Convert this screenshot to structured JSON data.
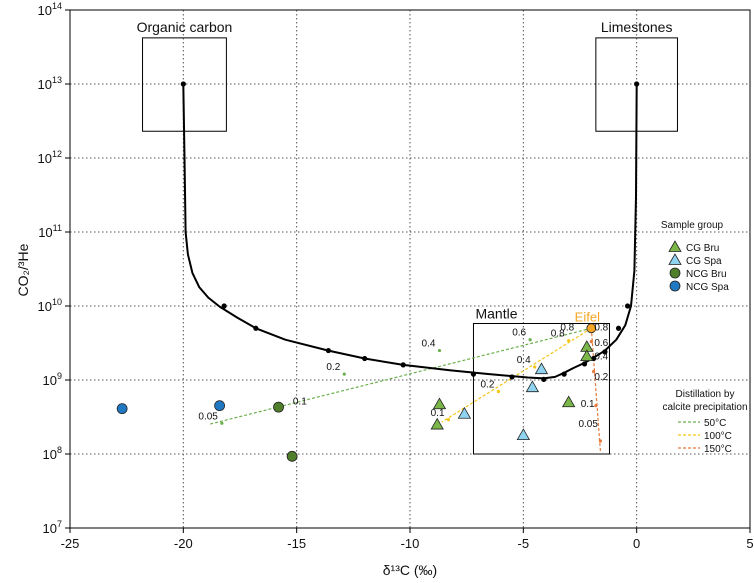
{
  "chart_data": {
    "type": "scatter",
    "xlabel": "δ¹³C (‰)",
    "ylabel": "CO₂/³He",
    "xlim": [
      -25,
      5
    ],
    "ylim_log10": [
      7,
      14
    ],
    "yscale": "log",
    "grid": true,
    "x_ticks": [
      "-25",
      "-20",
      "-15",
      "-10",
      "-5",
      "0",
      "5"
    ],
    "y_tick_exponents": [
      "7",
      "8",
      "9",
      "10",
      "11",
      "12",
      "13",
      "14"
    ],
    "legend_groups": {
      "sample_title": "Sample group",
      "distill_title_1": "Distillation by",
      "distill_title_2": "calcite precipitation"
    },
    "series": [
      {
        "name": "CG Bru",
        "marker": "triangle",
        "color": "#7ab648",
        "x": [
          -8.8,
          -8.7,
          -3.0,
          -2.2,
          -2.2
        ],
        "y": [
          250000000.0,
          470000000.0,
          500000000.0,
          2800000000.0,
          2100000000.0
        ]
      },
      {
        "name": "CG Spa",
        "marker": "triangle",
        "color": "#8fd3f0",
        "x": [
          -7.6,
          -5.0,
          -4.6,
          -4.2
        ],
        "y": [
          350000000.0,
          180000000.0,
          800000000.0,
          1400000000.0
        ]
      },
      {
        "name": "NCG Bru",
        "marker": "circle",
        "color": "#4f7f2a",
        "x": [
          -15.8,
          -15.2
        ],
        "y": [
          430000000.0,
          93000000.0
        ]
      },
      {
        "name": "NCG Spa",
        "marker": "circle",
        "color": "#1f78c1",
        "x": [
          -22.7,
          -18.4
        ],
        "y": [
          410000000.0,
          450000000.0
        ]
      }
    ],
    "eifel_point": {
      "label": "Eifel",
      "x": -2.0,
      "y": 5000000000.0,
      "color": "#f5a623"
    },
    "mixing_curve": {
      "x": [
        -20,
        -19.95,
        -19.9,
        -19.8,
        -19.6,
        -19.3,
        -18.9,
        -18.4,
        -17.6,
        -16.8,
        -15.5,
        -13.6,
        -12.0,
        -10.3,
        -8.2,
        -6.5,
        -4.8,
        -4.1,
        -3.6,
        -3.2,
        -2.8,
        -2.3,
        -1.9,
        -1.4,
        -0.9,
        -0.5,
        -0.25,
        -0.1,
        -0.03,
        0
      ],
      "y": [
        10000000000000.0,
        1000000000000.0,
        100000000000.0,
        50000000000.0,
        28000000000.0,
        18000000000.0,
        13000000000.0,
        9800000000.0,
        6900000000.0,
        5000000000.0,
        3500000000.0,
        2500000000.0,
        1950000000.0,
        1600000000.0,
        1350000000.0,
        1200000000.0,
        1080000000.0,
        1050000000.0,
        1100000000.0,
        1250000000.0,
        1450000000.0,
        1700000000.0,
        2000000000.0,
        2500000000.0,
        3500000000.0,
        5500000000.0,
        10000000000.0,
        30000000000.0,
        300000000000.0,
        10000000000000.0
      ]
    },
    "curve_markers": {
      "x": [
        -20,
        -18.2,
        -16.8,
        -13.6,
        -12.0,
        -10.3,
        -7.2,
        -5.5,
        -4.1,
        -3.2,
        -2.3,
        -1.9,
        -1.4,
        -0.8,
        -0.4,
        0
      ],
      "y": [
        10000000000000.0,
        10000000000.0,
        5000000000.0,
        2500000000.0,
        1950000000.0,
        1600000000.0,
        1200000000.0,
        1100000000.0,
        1020000000.0,
        1200000000.0,
        1650000000.0,
        1950000000.0,
        2400000000.0,
        5000000000.0,
        10000000000.0,
        10000000000000.0
      ]
    },
    "end_members": [
      {
        "label": "Organic carbon",
        "box_x": [
          -21.8,
          -18.1
        ],
        "box_y": [
          2300000000000.0,
          42000000000000.0
        ]
      },
      {
        "label": "Limestones",
        "box_x": [
          -1.8,
          1.8
        ],
        "box_y": [
          2300000000000.0,
          42000000000000.0
        ]
      }
    ],
    "mantle_box": {
      "label": "Mantle",
      "x": [
        -7.2,
        -1.2
      ],
      "y": [
        100000000.0,
        5800000000.0
      ]
    },
    "distillation": [
      {
        "name": "50°C",
        "color": "#6ab04c",
        "x": [
          -2.0,
          -18.9
        ],
        "y": [
          5000000000.0,
          250000000.0
        ],
        "marks_x": [
          -4.7,
          -8.7,
          -12.9,
          -18.3
        ],
        "marks_y": [
          3500000000.0,
          2500000000.0,
          1200000000.0,
          260000000.0
        ],
        "mark_labels": [
          "0.6",
          "0.4",
          "0.2",
          "0.05"
        ]
      },
      {
        "name": "100°C",
        "color": "#f5c518",
        "x": [
          -2.0,
          -8.6
        ],
        "y": [
          5000000000.0,
          270000000.0
        ],
        "marks_x": [
          -3.0,
          -4.5,
          -6.1,
          -8.3
        ],
        "marks_y": [
          3400000000.0,
          1500000000.0,
          700000000.0,
          290000000.0
        ],
        "mark_labels": [
          "0.8",
          "0.4",
          "0.2",
          "0.1"
        ]
      },
      {
        "name": "150°C",
        "color": "#e8793a",
        "x": [
          -2.0,
          -1.6
        ],
        "y": [
          5000000000.0,
          110000000.0
        ],
        "marks_x": [
          -2.0,
          -1.9,
          -1.8,
          -1.6
        ],
        "marks_y": [
          3300000000.0,
          1300000000.0,
          450000000.0,
          150000000.0
        ],
        "mark_labels": [],
        "mark_labels_unused": []
      }
    ],
    "curve_annotations": [
      {
        "text": "0.1",
        "x": -15.3,
        "y": 470000000.0
      },
      {
        "text": "0.4",
        "x": -2.0,
        "y": 1900000000.0
      },
      {
        "text": "0.6",
        "x": -2.0,
        "y": 2900000000.0
      },
      {
        "text": "0.8",
        "x": -2.0,
        "y": 4700000000.0
      },
      {
        "text": "0.2",
        "x": -2.0,
        "y": 1000000000.0
      },
      {
        "text": "0.1",
        "x": -2.6,
        "y": 430000000.0
      },
      {
        "text": "0.05",
        "x": -2.7,
        "y": 230000000.0
      },
      {
        "text": "0.8",
        "x": -3.5,
        "y": 4700000000.0
      }
    ]
  }
}
